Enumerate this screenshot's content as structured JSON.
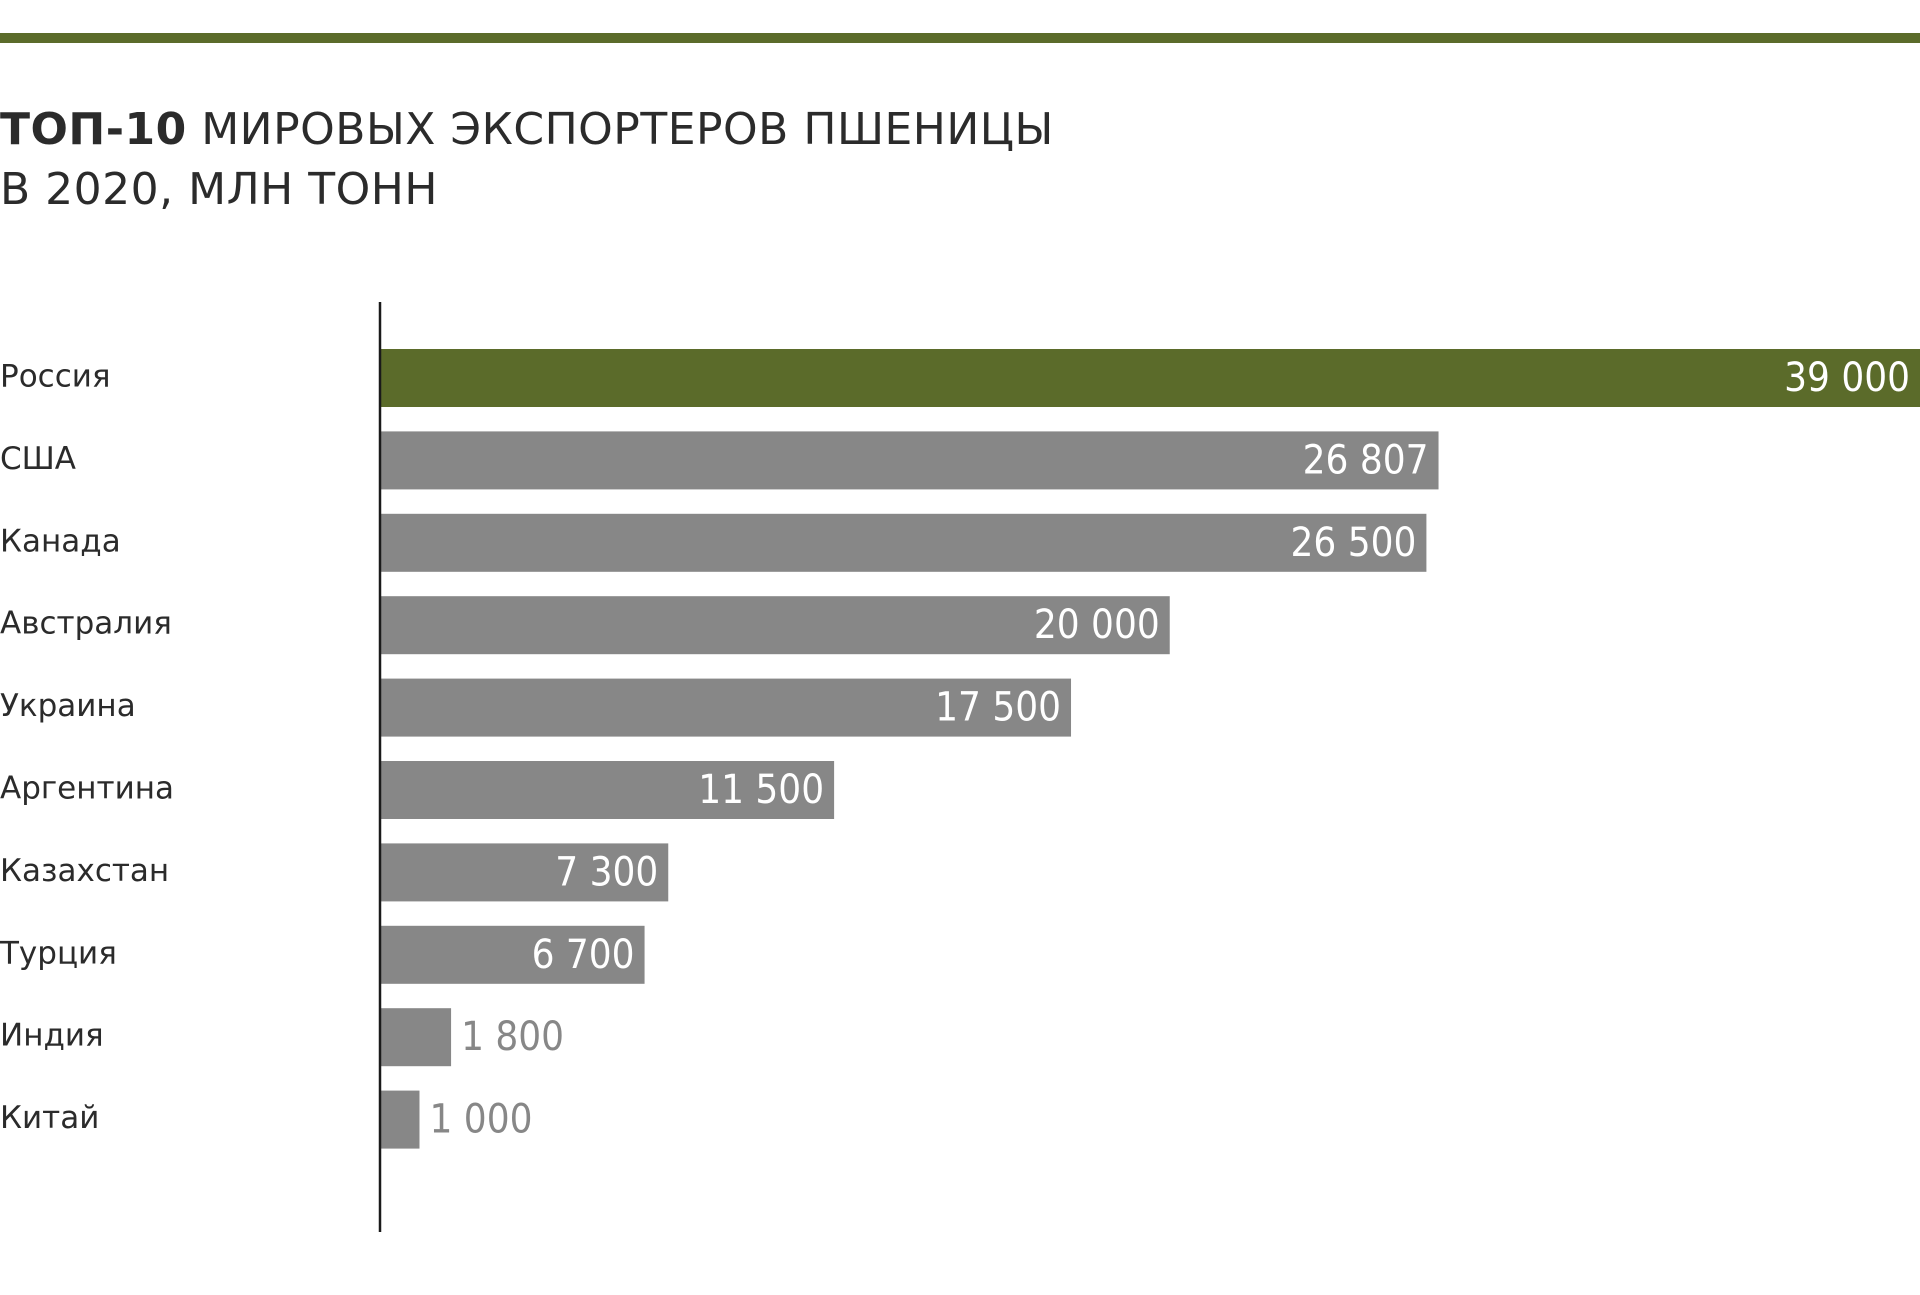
{
  "title": {
    "bold_part": "ТОП-10",
    "rest_line1": " МИРОВЫХ ЭКСПОРТЕРОВ ПШЕНИЦЫ",
    "line2": "В 2020, МЛН ТОНН"
  },
  "colors": {
    "accent": "#5b6b2a",
    "bar": "#878787",
    "axis": "#1a1a1a",
    "label_inside": "#ffffff",
    "label_outside": "#878787"
  },
  "chart_data": {
    "type": "bar",
    "orientation": "horizontal",
    "categories": [
      "Россия",
      "США",
      "Канада",
      "Австралия",
      "Украина",
      "Аргентина",
      "Казахстан",
      "Турция",
      "Индия",
      "Китай"
    ],
    "values": [
      39000,
      26807,
      26500,
      20000,
      17500,
      11500,
      7300,
      6700,
      1800,
      1000
    ],
    "value_labels": [
      "39 000",
      "26 807",
      "26 500",
      "20 000",
      "17 500",
      "11 500",
      "7 300",
      "6 700",
      "1 800",
      "1 000"
    ],
    "highlight_index": 0,
    "xlim": [
      0,
      39000
    ],
    "grid": false,
    "legend": "none"
  }
}
